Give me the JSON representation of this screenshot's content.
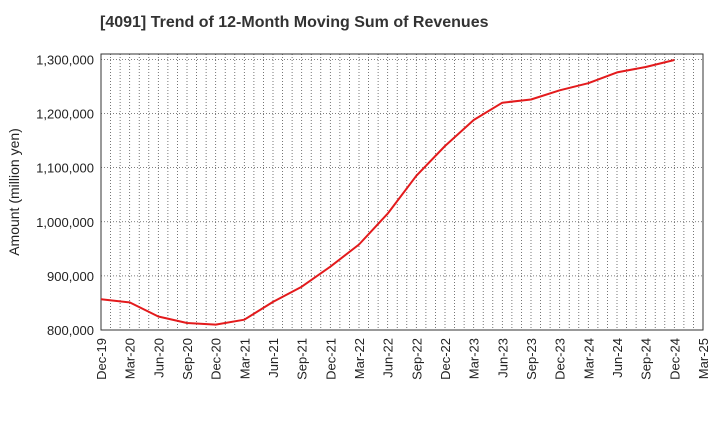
{
  "chart_data": {
    "type": "line",
    "title": "[4091]  Trend of 12-Month Moving Sum of Revenues",
    "xlabel": "",
    "ylabel": "Amount (million yen)",
    "ylim": [
      800000,
      1310000
    ],
    "yticks": [
      800000,
      900000,
      1000000,
      1100000,
      1200000,
      1300000
    ],
    "ytick_labels": [
      "800,000",
      "900,000",
      "1,000,000",
      "1,100,000",
      "1,200,000",
      "1,300,000"
    ],
    "xtick_labels": [
      "Dec-19",
      "Mar-20",
      "Jun-20",
      "Sep-20",
      "Dec-20",
      "Mar-21",
      "Jun-21",
      "Sep-21",
      "Dec-21",
      "Mar-22",
      "Jun-22",
      "Sep-22",
      "Dec-22",
      "Mar-23",
      "Jun-23",
      "Sep-23",
      "Dec-23",
      "Mar-24",
      "Jun-24",
      "Sep-24",
      "Dec-24",
      "Mar-25"
    ],
    "grid": true,
    "colors": {
      "line": "#e31a1c",
      "grid": "#555555",
      "frame": "#333333"
    },
    "series": [
      {
        "x": [
          "Dec-19",
          "Mar-20",
          "Jun-20",
          "Sep-20",
          "Dec-20",
          "Mar-21",
          "Jun-21",
          "Sep-21",
          "Dec-21",
          "Mar-22",
          "Jun-22",
          "Sep-22",
          "Dec-22",
          "Mar-23",
          "Jun-23",
          "Sep-23",
          "Dec-23",
          "Mar-24",
          "Jun-24",
          "Sep-24",
          "Dec-24"
        ],
        "values": [
          857000,
          851000,
          825000,
          813000,
          810000,
          819000,
          852000,
          880000,
          917000,
          958000,
          1015000,
          1085000,
          1140000,
          1188000,
          1220000,
          1226000,
          1243000,
          1256000,
          1276000,
          1286000,
          1299000
        ]
      }
    ]
  }
}
